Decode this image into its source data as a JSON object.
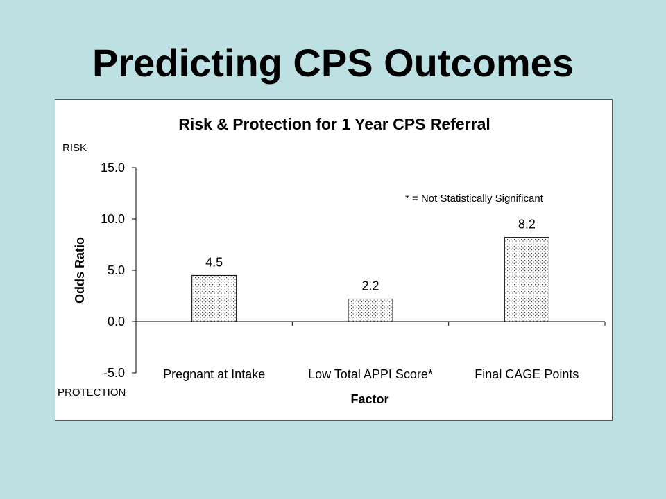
{
  "slide": {
    "title": "Predicting CPS Outcomes"
  },
  "colors": {
    "background": "#bde0e2",
    "chart_background": "#ffffff",
    "bar_fill": "dotted-pattern",
    "axis": "#000000"
  },
  "chart_data": {
    "type": "bar",
    "title": "Risk & Protection for 1 Year CPS Referral",
    "xlabel": "Factor",
    "ylabel": "Odds Ratio",
    "categories": [
      "Pregnant at Intake",
      "Low Total APPI Score*",
      "Final CAGE Points"
    ],
    "values": [
      4.5,
      2.2,
      8.2
    ],
    "data_labels": [
      "4.5",
      "2.2",
      "8.2"
    ],
    "ylim": [
      -5.0,
      15.0
    ],
    "yticks": [
      15.0,
      10.0,
      5.0,
      0.0,
      -5.0
    ],
    "ytick_labels": [
      "15.0",
      "10.0",
      "5.0",
      "0.0",
      "-5.0"
    ],
    "top_axis_note": "RISK",
    "bottom_axis_note": "PROTECTION",
    "annotation": "* = Not Statistically Significant",
    "grid": false,
    "legend": "none"
  }
}
